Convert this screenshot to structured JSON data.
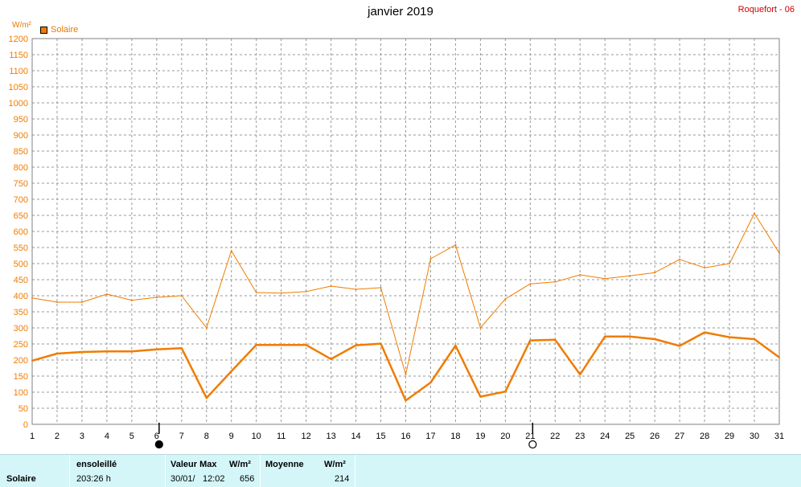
{
  "header": {
    "title": "janvier 2019",
    "station": "Roquefort - 06",
    "legend_label": "Solaire",
    "unit": "W/m²"
  },
  "colors": {
    "accent": "#f07c00",
    "grid": "#999999",
    "footer_bg": "#d4f6f8"
  },
  "chart_data": {
    "type": "line",
    "title": "janvier 2019",
    "ylabel": "W/m²",
    "ylim": [
      0,
      1200
    ],
    "yticks": [
      0,
      50,
      100,
      150,
      200,
      250,
      300,
      350,
      400,
      450,
      500,
      550,
      600,
      650,
      700,
      750,
      800,
      850,
      900,
      950,
      1000,
      1050,
      1100,
      1150,
      1200
    ],
    "x": [
      1,
      2,
      3,
      4,
      5,
      6,
      7,
      8,
      9,
      10,
      11,
      12,
      13,
      14,
      15,
      16,
      17,
      18,
      19,
      20,
      21,
      22,
      23,
      24,
      25,
      26,
      27,
      28,
      29,
      30,
      31
    ],
    "xlim": [
      1,
      31
    ],
    "grid": true,
    "legend": "top-left",
    "series": [
      {
        "name": "Solaire",
        "values": [
          393,
          380,
          380,
          405,
          386,
          395,
          400,
          300,
          540,
          410,
          408,
          413,
          430,
          420,
          425,
          155,
          515,
          558,
          300,
          390,
          437,
          443,
          465,
          453,
          462,
          472,
          513,
          487,
          500,
          656,
          533
        ]
      },
      {
        "name": "Solaire",
        "values": [
          198,
          220,
          225,
          227,
          227,
          233,
          237,
          82,
          165,
          247,
          247,
          247,
          203,
          246,
          251,
          74,
          130,
          245,
          86,
          102,
          261,
          263,
          155,
          273,
          273,
          265,
          244,
          286,
          271,
          265,
          208
        ]
      }
    ],
    "markers": [
      {
        "day": 6,
        "symbol": "new-moon"
      },
      {
        "day": 21,
        "symbol": "full-moon"
      }
    ]
  },
  "footer": {
    "row_label": "Solaire",
    "sunshine_label": "ensoleillé",
    "sunshine_value": "203:26 h",
    "max_label": "Valeur Max",
    "max_unit": "W/m²",
    "max_date": "30/01/",
    "max_time": "12:02",
    "max_value": "656",
    "avg_label": "Moyenne",
    "avg_unit": "W/m²",
    "avg_value": "214"
  }
}
